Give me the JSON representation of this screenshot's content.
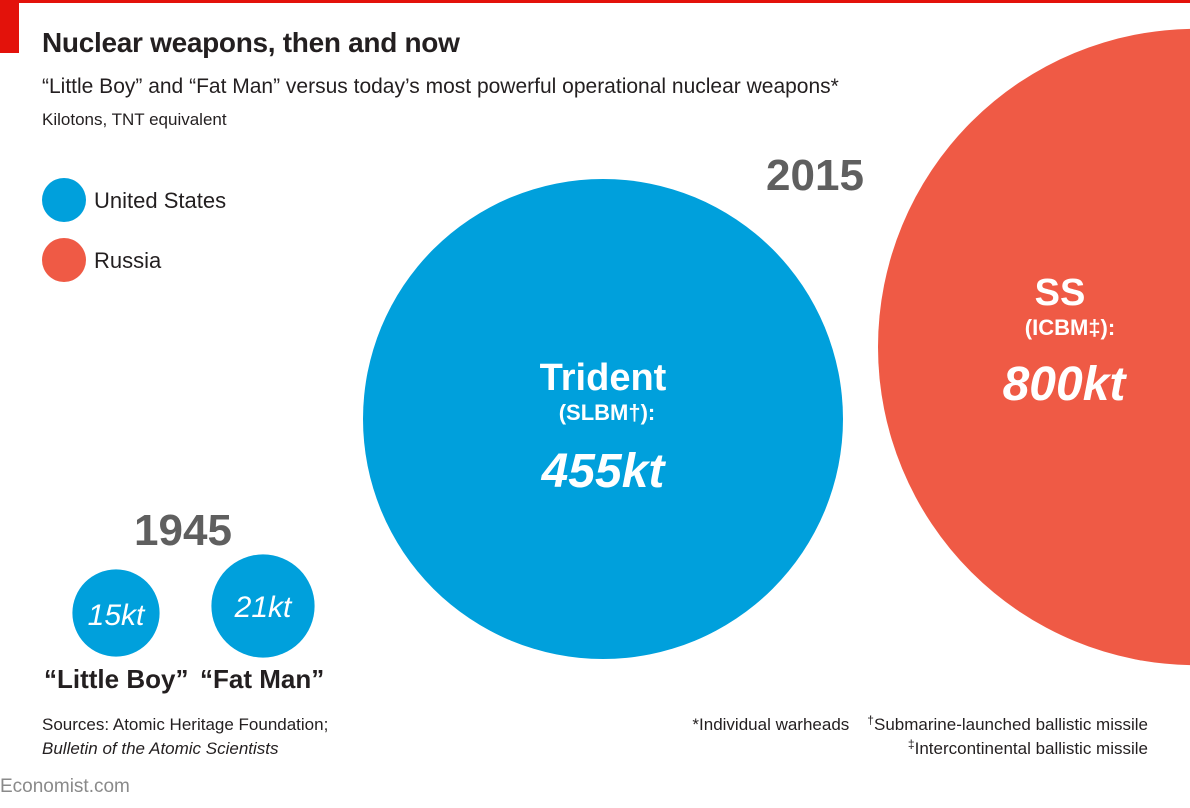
{
  "header": {
    "title": "Nuclear weapons, then and now",
    "subtitle": "“Little Boy” and “Fat Man” versus today’s most powerful operational nuclear weapons*",
    "units": "Kilotons,  TNT equivalent"
  },
  "legend": [
    {
      "label": "United States",
      "color": "#00a0dc"
    },
    {
      "label": "Russia",
      "color": "#ef5a45"
    }
  ],
  "colors": {
    "us": "#00a0dc",
    "russia": "#ef5a45",
    "year_label": "#5f5f5f",
    "accent": "#e3120b"
  },
  "chart_data": {
    "type": "bubble",
    "unit": "kt",
    "groups": [
      {
        "year": "1945",
        "items": [
          {
            "name": "“Little Boy”",
            "country": "United States",
            "value": 15,
            "value_label": "15kt"
          },
          {
            "name": "“Fat Man”",
            "country": "United States",
            "value": 21,
            "value_label": "21kt"
          }
        ]
      },
      {
        "year": "2015",
        "items": [
          {
            "name": "Trident",
            "sub": "(SLBM†):",
            "country": "United States",
            "value": 455,
            "value_label": "455kt"
          },
          {
            "name": "SS",
            "sub": "(ICBM‡):",
            "country": "Russia",
            "value": 800,
            "value_label": "800kt"
          }
        ]
      }
    ]
  },
  "labels": {
    "little_boy": "“Little Boy”",
    "fat_man": "“Fat Man”"
  },
  "sources": {
    "line1": "Sources: Atomic Heritage Foundation;",
    "line2": "Bulletin of the Atomic Scientists"
  },
  "footnotes": {
    "star": "*Individual warheads",
    "dagger_mark": "†",
    "dagger": "Submarine-launched ballistic missile",
    "ddagger_mark": "‡",
    "ddagger": "Intercontinental ballistic missile"
  },
  "credit": "Economist.com"
}
